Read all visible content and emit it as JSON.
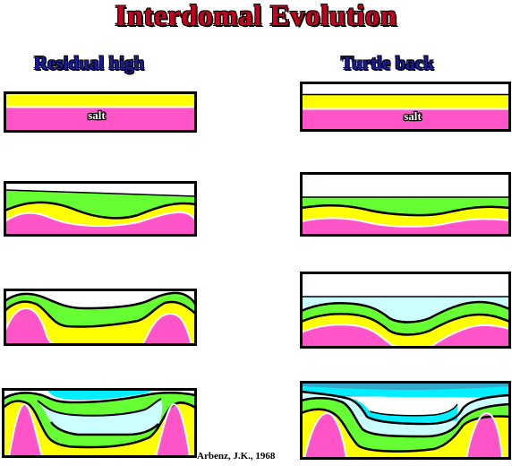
{
  "title": "Interdomal Evolution",
  "columns": {
    "left": "Residual high",
    "right": "Turtle back"
  },
  "labels": {
    "salt": "salt"
  },
  "credit": "Arbenz, J.K., 1968",
  "colors": {
    "title": "#c8001e",
    "heading": "#1a1aa8",
    "salt": "#ff55c8",
    "yellow": "#ffff00",
    "green": "#66ff33",
    "light_cyan": "#ccffff",
    "cyan": "#00eeff",
    "dark_cyan": "#33aacc"
  }
}
